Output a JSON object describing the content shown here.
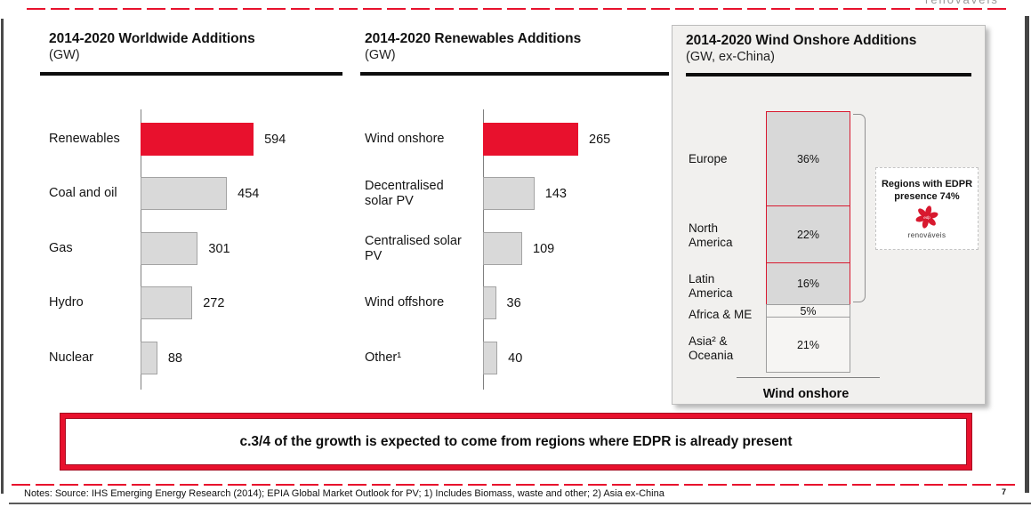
{
  "slide": {
    "page_number": "7",
    "top_right_fragment": "renováveis",
    "banner_text": "c.3/4 of the growth is expected to come from regions where EDPR is already present",
    "notes": "Notes: Source: IHS Emerging Energy Research (2014); EPIA Global Market Outlook for PV; 1) Includes Biomass, waste and other; 2) Asia ex-China"
  },
  "colors": {
    "accent_red": "#e8112d",
    "bar_gray": "#d9d9d9",
    "panel_bg": "#f1f0ee"
  },
  "chart_data": [
    {
      "type": "bar",
      "orientation": "horizontal",
      "title": "2014-2020 Worldwide Additions",
      "subtitle": "(GW)",
      "categories": [
        "Renewables",
        "Coal and oil",
        "Gas",
        "Hydro",
        "Nuclear"
      ],
      "values": [
        594,
        454,
        301,
        272,
        88
      ],
      "value_labels": [
        "594",
        "454",
        "301",
        "272",
        "88"
      ],
      "highlight_index": 0,
      "highlight_color": "#e8112d",
      "grid": false,
      "legend": "none"
    },
    {
      "type": "bar",
      "orientation": "horizontal",
      "title": "2014-2020 Renewables Additions",
      "subtitle": "(GW)",
      "categories": [
        "Wind onshore",
        "Decentralised solar PV",
        "Centralised solar PV",
        "Wind offshore",
        "Other¹"
      ],
      "values": [
        265,
        143,
        109,
        36,
        40
      ],
      "value_labels": [
        "265",
        "143",
        "109",
        "36",
        "40"
      ],
      "highlight_index": 0,
      "highlight_color": "#e8112d",
      "grid": false,
      "legend": "none"
    },
    {
      "type": "bar",
      "subtype": "stacked-percent-column",
      "title": "2014-2020 Wind Onshore Additions",
      "subtitle": "(GW, ex-China)",
      "xlabel": "Wind onshore",
      "segments": [
        {
          "label": "Europe",
          "pct": 36,
          "pct_label": "36%",
          "edpr_region": true
        },
        {
          "label": "North America",
          "pct": 22,
          "pct_label": "22%",
          "edpr_region": true
        },
        {
          "label": "Latin America",
          "pct": 16,
          "pct_label": "16%",
          "edpr_region": true
        },
        {
          "label": "Africa & ME",
          "pct": 5,
          "pct_label": "5%",
          "edpr_region": false
        },
        {
          "label": "Asia² & Oceania",
          "pct": 21,
          "pct_label": "21%",
          "edpr_region": false
        }
      ],
      "callout": {
        "text": "Regions with EDPR presence 74%",
        "brand": "renováveis"
      }
    }
  ]
}
